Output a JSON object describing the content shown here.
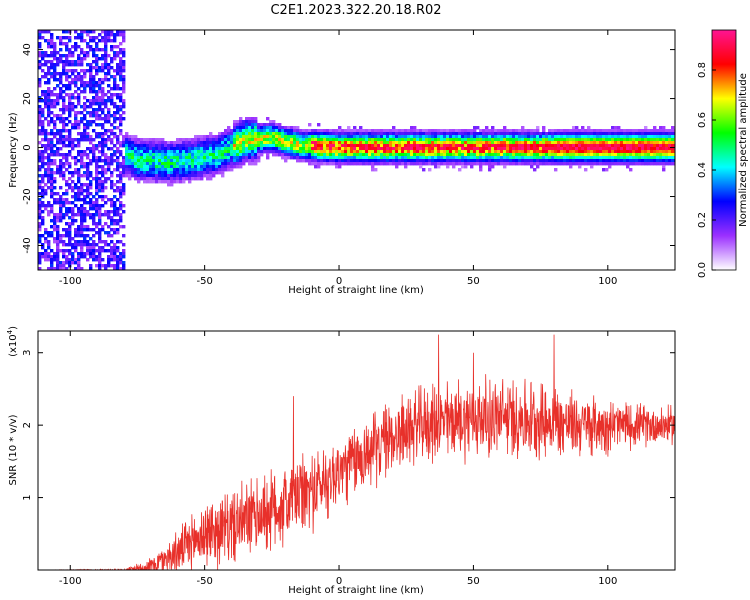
{
  "title": "C2E1.2023.322.20.18.R02",
  "chart_data": [
    {
      "type": "heatmap",
      "xlabel": "Height of straight line (km)",
      "ylabel": "Frequency (Hz)",
      "xlim": [
        -112,
        125
      ],
      "ylim": [
        -50,
        48
      ],
      "x_ticks": [
        -100,
        -50,
        0,
        50,
        100
      ],
      "y_ticks": [
        -40,
        -20,
        0,
        20,
        40
      ],
      "colorbar": {
        "label": "Normalized spectral amplitude",
        "range": [
          0,
          0.96
        ],
        "ticks": [
          0.0,
          0.2,
          0.4,
          0.6,
          0.8
        ],
        "colors": [
          "#ffffff",
          "#9b30ff",
          "#0000ff",
          "#00ffff",
          "#00ff00",
          "#ffff00",
          "#ff0000",
          "#ff1493"
        ]
      },
      "ridge_frequency_hz": [
        {
          "x": -85,
          "y": 0
        },
        {
          "x": -75,
          "y": -5
        },
        {
          "x": -62,
          "y": -6
        },
        {
          "x": -55,
          "y": -5
        },
        {
          "x": -45,
          "y": -3
        },
        {
          "x": -35,
          "y": 3
        },
        {
          "x": -25,
          "y": 4
        },
        {
          "x": -15,
          "y": 1
        },
        {
          "x": 0,
          "y": 0
        },
        {
          "x": 25,
          "y": 0
        },
        {
          "x": 50,
          "y": 0
        },
        {
          "x": 75,
          "y": 0
        },
        {
          "x": 100,
          "y": 0
        },
        {
          "x": 125,
          "y": 0
        }
      ]
    },
    {
      "type": "line",
      "xlabel": "Height of straight line (km)",
      "ylabel": "SNR (10 * v/v)",
      "multiplier_label": "(x10",
      "multiplier_exp": "4",
      "xlim": [
        -112,
        125
      ],
      "ylim": [
        0,
        3.3
      ],
      "x_ticks": [
        -100,
        -50,
        0,
        50,
        100
      ],
      "y_ticks": [
        1,
        2,
        3
      ],
      "line_color": "#e8302a",
      "envelope": [
        {
          "x": -112,
          "mean": 0.0,
          "amp": 0.0
        },
        {
          "x": -80,
          "mean": 0.0,
          "amp": 0.02
        },
        {
          "x": -70,
          "mean": 0.05,
          "amp": 0.15
        },
        {
          "x": -60,
          "mean": 0.25,
          "amp": 0.35
        },
        {
          "x": -50,
          "mean": 0.5,
          "amp": 0.55
        },
        {
          "x": -40,
          "mean": 0.6,
          "amp": 0.6
        },
        {
          "x": -30,
          "mean": 0.75,
          "amp": 0.65
        },
        {
          "x": -20,
          "mean": 0.9,
          "amp": 0.7
        },
        {
          "x": -10,
          "mean": 1.1,
          "amp": 0.65
        },
        {
          "x": 0,
          "mean": 1.35,
          "amp": 0.6
        },
        {
          "x": 10,
          "mean": 1.6,
          "amp": 0.6
        },
        {
          "x": 20,
          "mean": 1.85,
          "amp": 0.6
        },
        {
          "x": 30,
          "mean": 2.0,
          "amp": 0.6
        },
        {
          "x": 40,
          "mean": 2.05,
          "amp": 0.65
        },
        {
          "x": 50,
          "mean": 2.1,
          "amp": 0.65
        },
        {
          "x": 60,
          "mean": 2.1,
          "amp": 0.65
        },
        {
          "x": 70,
          "mean": 2.1,
          "amp": 0.65
        },
        {
          "x": 80,
          "mean": 2.05,
          "amp": 0.6
        },
        {
          "x": 90,
          "mean": 2.0,
          "amp": 0.5
        },
        {
          "x": 100,
          "mean": 2.0,
          "amp": 0.45
        },
        {
          "x": 110,
          "mean": 2.0,
          "amp": 0.35
        },
        {
          "x": 125,
          "mean": 2.0,
          "amp": 0.3
        }
      ],
      "peaks": [
        {
          "x": 37,
          "y": 3.25
        },
        {
          "x": 80,
          "y": 3.25
        },
        {
          "x": -17,
          "y": 2.4
        },
        {
          "x": 50,
          "y": 3.0
        }
      ]
    }
  ]
}
